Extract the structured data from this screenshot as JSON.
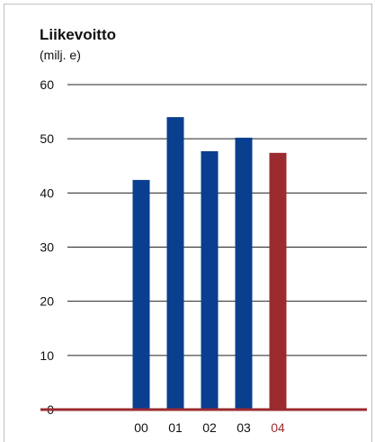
{
  "chart_data": {
    "type": "bar",
    "title": "Liikevoitto",
    "subtitle": "(milj. e)",
    "xlabel": "",
    "ylabel": "",
    "categories": [
      "00",
      "01",
      "02",
      "03",
      "04"
    ],
    "values": [
      42.4,
      54.0,
      47.7,
      50.2,
      47.4
    ],
    "yticks": [
      "0",
      "10",
      "20",
      "30",
      "40",
      "50",
      "60"
    ],
    "ylim": [
      0,
      60
    ],
    "grid": true,
    "legend": "none",
    "colors": {
      "bar": "#0a3f8f",
      "highlight": "#9b2b2f",
      "highlight_category": "04",
      "grid": "#222222",
      "baseline": "#9b2b2f",
      "highlight_label": "#9b2b2f"
    }
  }
}
